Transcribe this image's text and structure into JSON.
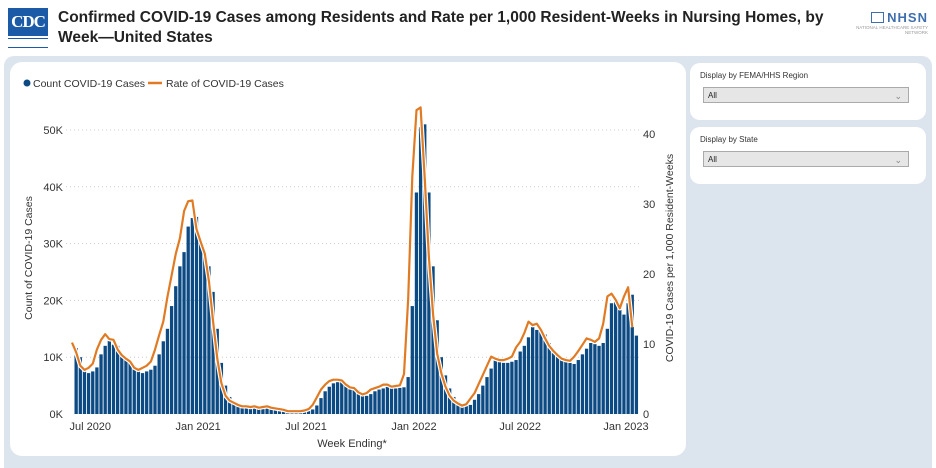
{
  "header": {
    "logo_text": "CDC",
    "title": "Confirmed COVID-19 Cases among Residents and Rate per 1,000 Resident-Weeks in Nursing Homes, by Week—United States",
    "partner_logo": "NHSN",
    "partner_logo_sub": "National Healthcare Safety Network"
  },
  "filters": [
    {
      "label": "Display by FEMA/HHS Region",
      "value": "All"
    },
    {
      "label": "Display by State",
      "value": "All"
    }
  ],
  "colors": {
    "bar": "#0c4a84",
    "line": "#e07b24"
  },
  "chart_data": {
    "type": "bar+line",
    "legend": {
      "position": "top-left",
      "items": [
        "Count COVID-19 Cases",
        "Rate of COVID-19 Cases"
      ]
    },
    "xlabel": "Week Ending*",
    "ylabel": "Count of COVID-19 Cases",
    "y2label": "COVID-19 Cases per 1,000 Resident-Weeks",
    "ylim": [
      0,
      50000
    ],
    "y2lim": [
      0,
      40
    ],
    "yticks": [
      {
        "v": 0,
        "label": "0K"
      },
      {
        "v": 10000,
        "label": "10K"
      },
      {
        "v": 20000,
        "label": "20K"
      },
      {
        "v": 30000,
        "label": "30K"
      },
      {
        "v": 40000,
        "label": "40K"
      },
      {
        "v": 50000,
        "label": "50K"
      }
    ],
    "y2ticks": [
      {
        "v": 0,
        "label": "0"
      },
      {
        "v": 10,
        "label": "10"
      },
      {
        "v": 20,
        "label": "20"
      },
      {
        "v": 30,
        "label": "30"
      },
      {
        "v": 40,
        "label": "40"
      }
    ],
    "xticks": [
      {
        "week": 4.4,
        "label": "Jul 2020"
      },
      {
        "week": 30.4,
        "label": "Jan 2021"
      },
      {
        "week": 56.4,
        "label": "Jul 2021"
      },
      {
        "week": 82.4,
        "label": "Jan 2022"
      },
      {
        "week": 108,
        "label": "Jul 2022"
      },
      {
        "week": 133.5,
        "label": "Jan 2023"
      }
    ],
    "grid": "horizontal dotted",
    "series": [
      {
        "name": "Count COVID-19 Cases",
        "type": "bar",
        "axis": "left",
        "unit": "thousands",
        "values": [
          11.6,
          10,
          7.8,
          7.2,
          7.5,
          8.2,
          10.5,
          12,
          13,
          12.2,
          12,
          10.5,
          9.5,
          9,
          8.5,
          7.5,
          7.2,
          7.5,
          7.8,
          8.5,
          10.5,
          12.8,
          15,
          19,
          22.5,
          26,
          28.5,
          33,
          34.5,
          34.7,
          30,
          28,
          26,
          21.5,
          15,
          9,
          5,
          3,
          2.2,
          1.8,
          1.5,
          1.3,
          1.2,
          1.1,
          1.2,
          1.0,
          1.1,
          1.2,
          1.0,
          0.9,
          0.8,
          0.7,
          0.5,
          0.4,
          0.4,
          0.5,
          0.6,
          0.8,
          1.5,
          2.8,
          4.0,
          4.8,
          5.4,
          5.6,
          5.6,
          5.5,
          4.8,
          4.4,
          4.2,
          3.6,
          3.2,
          3.5,
          4.0,
          4.3,
          4.5,
          4.8,
          4.8,
          4.5,
          4.6,
          4.7,
          6.5,
          19,
          39,
          50.5,
          51,
          39,
          26,
          16.5,
          10,
          6.8,
          4.5,
          3,
          2.2,
          1.8,
          1.4,
          1.6,
          2.5,
          3.5,
          5,
          6.5,
          8,
          9.5,
          9.2,
          9,
          9,
          9.2,
          9.5,
          11,
          12,
          13.5,
          15.3,
          14.8,
          15,
          14,
          12.5,
          11.3,
          10.5,
          9.8,
          9.2,
          9,
          8.8,
          9.5,
          10.5,
          11.5,
          12.5,
          12.3,
          12,
          12.5,
          15,
          19.5,
          20,
          19,
          17.5,
          19.5,
          21,
          13.8
        ]
      },
      {
        "name": "Rate of COVID-19 Cases",
        "type": "line",
        "axis": "right",
        "values": [
          10.2,
          8.8,
          6.9,
          6.3,
          6.6,
          7.2,
          9.2,
          10.6,
          11.4,
          10.7,
          10.6,
          9.2,
          8.4,
          7.9,
          7.5,
          6.6,
          6.3,
          6.6,
          6.9,
          7.5,
          9.2,
          11.3,
          13.2,
          16.7,
          19.8,
          22.9,
          25.1,
          29.0,
          30.4,
          30.5,
          26.4,
          24.6,
          22.9,
          18.9,
          13.2,
          7.9,
          4.4,
          2.6,
          1.9,
          1.6,
          1.3,
          1.1,
          1.1,
          1.0,
          1.1,
          0.9,
          1.0,
          1.1,
          0.9,
          0.8,
          0.7,
          0.6,
          0.4,
          0.4,
          0.4,
          0.4,
          0.5,
          0.7,
          1.3,
          2.4,
          3.5,
          4.2,
          4.7,
          4.9,
          4.9,
          4.8,
          4.2,
          3.8,
          3.7,
          3.1,
          2.8,
          3.0,
          3.5,
          3.7,
          3.9,
          4.2,
          4.2,
          3.9,
          4.0,
          4.1,
          5.7,
          16.5,
          33.9,
          43.4,
          43.8,
          33.5,
          22.4,
          14.2,
          8.6,
          5.8,
          3.9,
          2.6,
          1.9,
          1.5,
          1.2,
          1.4,
          2.2,
          3.0,
          4.3,
          5.6,
          6.9,
          8.2,
          7.9,
          7.7,
          7.7,
          7.9,
          8.2,
          9.5,
          10.3,
          11.6,
          13.2,
          12.7,
          12.9,
          12.0,
          10.8,
          9.7,
          9.0,
          8.4,
          7.9,
          7.7,
          7.6,
          8.2,
          9.0,
          9.9,
          10.8,
          10.6,
          10.3,
          10.8,
          12.9,
          16.8,
          17.2,
          16.3,
          15.1,
          16.8,
          18.1,
          12.4
        ]
      }
    ]
  }
}
